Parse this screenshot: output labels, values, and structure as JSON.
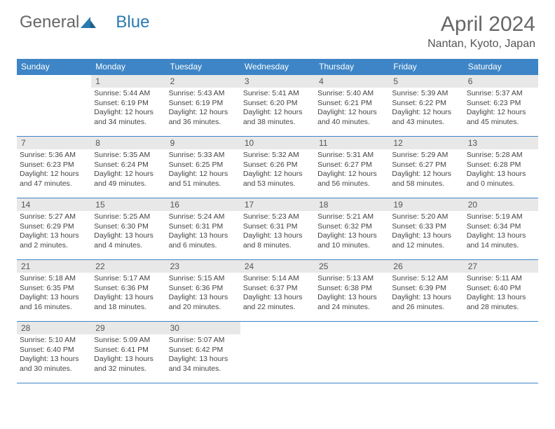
{
  "logo": {
    "text1": "General",
    "text2": "Blue"
  },
  "title": "April 2024",
  "location": "Nantan, Kyoto, Japan",
  "colors": {
    "header_bg": "#3d85c6",
    "daynum_bg": "#e8e8e8",
    "border": "#3d85c6",
    "text": "#444444",
    "title": "#666666"
  },
  "weekdays": [
    "Sunday",
    "Monday",
    "Tuesday",
    "Wednesday",
    "Thursday",
    "Friday",
    "Saturday"
  ],
  "start_offset": 1,
  "days": [
    {
      "n": 1,
      "sr": "5:44 AM",
      "ss": "6:19 PM",
      "dl": "12 hours and 34 minutes."
    },
    {
      "n": 2,
      "sr": "5:43 AM",
      "ss": "6:19 PM",
      "dl": "12 hours and 36 minutes."
    },
    {
      "n": 3,
      "sr": "5:41 AM",
      "ss": "6:20 PM",
      "dl": "12 hours and 38 minutes."
    },
    {
      "n": 4,
      "sr": "5:40 AM",
      "ss": "6:21 PM",
      "dl": "12 hours and 40 minutes."
    },
    {
      "n": 5,
      "sr": "5:39 AM",
      "ss": "6:22 PM",
      "dl": "12 hours and 43 minutes."
    },
    {
      "n": 6,
      "sr": "5:37 AM",
      "ss": "6:23 PM",
      "dl": "12 hours and 45 minutes."
    },
    {
      "n": 7,
      "sr": "5:36 AM",
      "ss": "6:23 PM",
      "dl": "12 hours and 47 minutes."
    },
    {
      "n": 8,
      "sr": "5:35 AM",
      "ss": "6:24 PM",
      "dl": "12 hours and 49 minutes."
    },
    {
      "n": 9,
      "sr": "5:33 AM",
      "ss": "6:25 PM",
      "dl": "12 hours and 51 minutes."
    },
    {
      "n": 10,
      "sr": "5:32 AM",
      "ss": "6:26 PM",
      "dl": "12 hours and 53 minutes."
    },
    {
      "n": 11,
      "sr": "5:31 AM",
      "ss": "6:27 PM",
      "dl": "12 hours and 56 minutes."
    },
    {
      "n": 12,
      "sr": "5:29 AM",
      "ss": "6:27 PM",
      "dl": "12 hours and 58 minutes."
    },
    {
      "n": 13,
      "sr": "5:28 AM",
      "ss": "6:28 PM",
      "dl": "13 hours and 0 minutes."
    },
    {
      "n": 14,
      "sr": "5:27 AM",
      "ss": "6:29 PM",
      "dl": "13 hours and 2 minutes."
    },
    {
      "n": 15,
      "sr": "5:25 AM",
      "ss": "6:30 PM",
      "dl": "13 hours and 4 minutes."
    },
    {
      "n": 16,
      "sr": "5:24 AM",
      "ss": "6:31 PM",
      "dl": "13 hours and 6 minutes."
    },
    {
      "n": 17,
      "sr": "5:23 AM",
      "ss": "6:31 PM",
      "dl": "13 hours and 8 minutes."
    },
    {
      "n": 18,
      "sr": "5:21 AM",
      "ss": "6:32 PM",
      "dl": "13 hours and 10 minutes."
    },
    {
      "n": 19,
      "sr": "5:20 AM",
      "ss": "6:33 PM",
      "dl": "13 hours and 12 minutes."
    },
    {
      "n": 20,
      "sr": "5:19 AM",
      "ss": "6:34 PM",
      "dl": "13 hours and 14 minutes."
    },
    {
      "n": 21,
      "sr": "5:18 AM",
      "ss": "6:35 PM",
      "dl": "13 hours and 16 minutes."
    },
    {
      "n": 22,
      "sr": "5:17 AM",
      "ss": "6:36 PM",
      "dl": "13 hours and 18 minutes."
    },
    {
      "n": 23,
      "sr": "5:15 AM",
      "ss": "6:36 PM",
      "dl": "13 hours and 20 minutes."
    },
    {
      "n": 24,
      "sr": "5:14 AM",
      "ss": "6:37 PM",
      "dl": "13 hours and 22 minutes."
    },
    {
      "n": 25,
      "sr": "5:13 AM",
      "ss": "6:38 PM",
      "dl": "13 hours and 24 minutes."
    },
    {
      "n": 26,
      "sr": "5:12 AM",
      "ss": "6:39 PM",
      "dl": "13 hours and 26 minutes."
    },
    {
      "n": 27,
      "sr": "5:11 AM",
      "ss": "6:40 PM",
      "dl": "13 hours and 28 minutes."
    },
    {
      "n": 28,
      "sr": "5:10 AM",
      "ss": "6:40 PM",
      "dl": "13 hours and 30 minutes."
    },
    {
      "n": 29,
      "sr": "5:09 AM",
      "ss": "6:41 PM",
      "dl": "13 hours and 32 minutes."
    },
    {
      "n": 30,
      "sr": "5:07 AM",
      "ss": "6:42 PM",
      "dl": "13 hours and 34 minutes."
    }
  ],
  "labels": {
    "sunrise": "Sunrise:",
    "sunset": "Sunset:",
    "daylight": "Daylight:"
  }
}
